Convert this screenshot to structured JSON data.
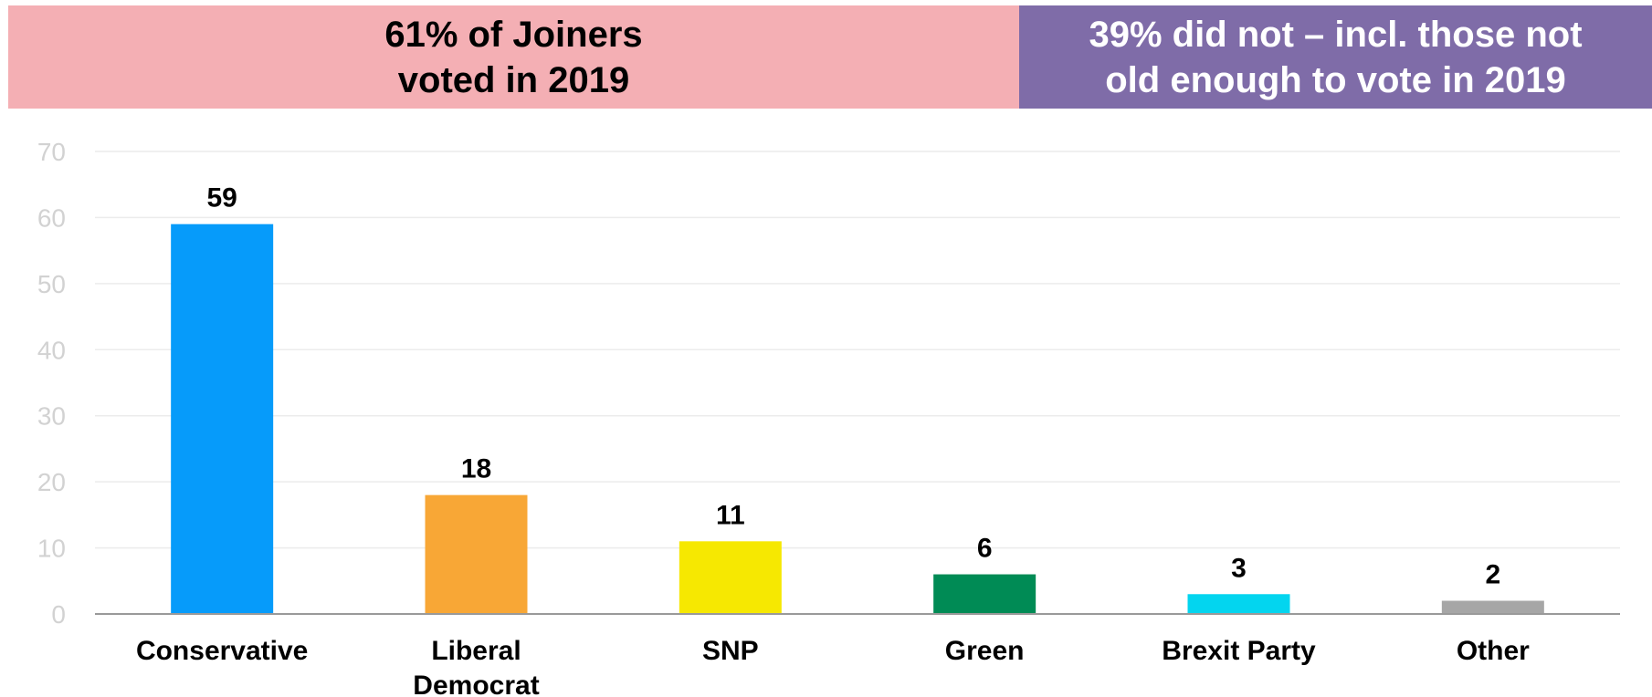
{
  "banners": {
    "left": {
      "line1": "61% of Joiners",
      "line2": "voted in 2019",
      "color": "#f4afb4"
    },
    "right": {
      "line1": "39% did not – incl. those not",
      "line2": "old enough to vote in 2019",
      "color": "#7f6ca8"
    }
  },
  "chart_data": {
    "type": "bar",
    "categories": [
      [
        "Conservative"
      ],
      [
        "Liberal",
        "Democrat"
      ],
      [
        "SNP"
      ],
      [
        "Green"
      ],
      [
        "Brexit Party"
      ],
      [
        "Other"
      ]
    ],
    "values": [
      59,
      18,
      11,
      6,
      3,
      2
    ],
    "colors": [
      "#069bfa",
      "#f8a736",
      "#f6e801",
      "#008b55",
      "#03d5ef",
      "#a6a6a6"
    ],
    "ylim": [
      0,
      70
    ],
    "yticks": [
      0,
      10,
      20,
      30,
      40,
      50,
      60,
      70
    ],
    "grid": true,
    "data_labels": true
  }
}
